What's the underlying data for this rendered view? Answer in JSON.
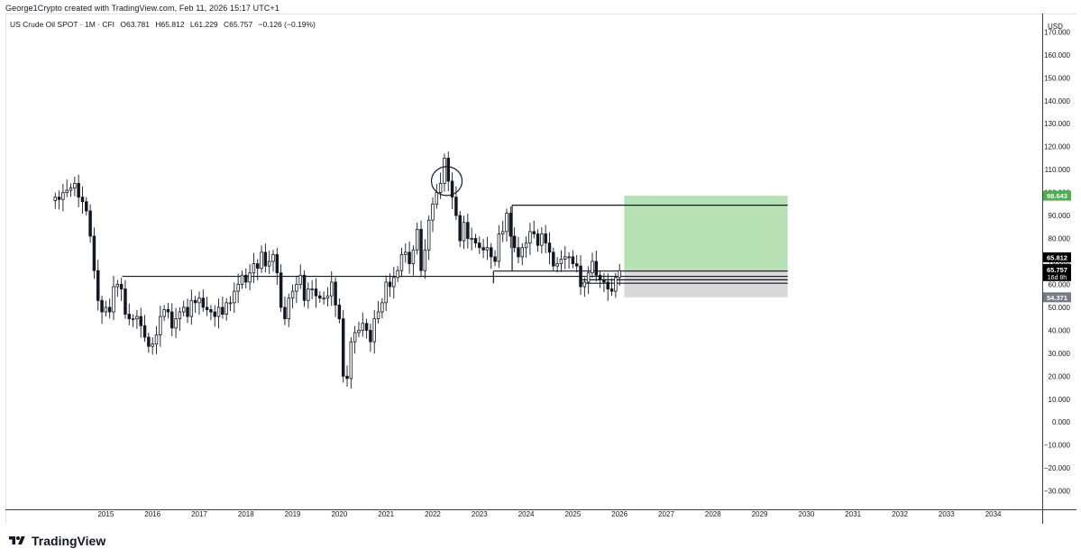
{
  "header": {
    "credit": "George1Crypto created with TradingView.com, Feb 11, 2026 15:17 UTC+1",
    "symbol": "US Crude Oil SPOT · 1M · CFI",
    "open": "O63.781",
    "high": "H65.812",
    "low": "L61.229",
    "close": "C65.757",
    "change": "−0.126 (−0.19%)"
  },
  "axis": {
    "currency": "USD"
  },
  "price_labels": {
    "target": "98.643",
    "high": "65.812",
    "last": "65.757",
    "countdown": "16d 8h",
    "stop": "54.371"
  },
  "branding": {
    "logo_text": "TradingView"
  },
  "colors": {
    "up": "#089981",
    "down": "#131722",
    "target_zone": "#b7e1b5",
    "stop_zone": "#d9d9d9",
    "target_label_bg": "#4caf50",
    "last_label_bg": "#000000",
    "stop_label_bg": "#787b86"
  },
  "chart_data": {
    "type": "candlestick",
    "timeframe": "1M",
    "y_ticks": [
      170,
      160,
      150,
      140,
      130,
      120,
      110,
      100,
      90,
      80,
      70,
      60,
      50,
      40,
      30,
      20,
      10,
      0,
      -10,
      -20,
      -30
    ],
    "y_tick_labels": [
      "170.000",
      "160.000",
      "150.000",
      "140.000",
      "130.000",
      "120.000",
      "110.000",
      "100.000",
      "90.000",
      "80.000",
      "70.000",
      "60.000",
      "50.000",
      "40.000",
      "30.000",
      "20.000",
      "10.000",
      "0.000",
      "−10.000",
      "−20.000",
      "−30.000"
    ],
    "ylim": [
      -38,
      178
    ],
    "x_ticks": [
      "2015",
      "2016",
      "2017",
      "2018",
      "2019",
      "2020",
      "2021",
      "2022",
      "2023",
      "2024",
      "2025",
      "2026",
      "2027",
      "2028",
      "2029",
      "2030",
      "2031",
      "2032",
      "2033",
      "2034"
    ],
    "x_tick_years": [
      2015,
      2016,
      2017,
      2018,
      2019,
      2020,
      2021,
      2022,
      2023,
      2024,
      2025,
      2026,
      2027,
      2028,
      2029,
      2030,
      2031,
      2032,
      2033,
      2034
    ],
    "xlim": [
      2012.85,
      2035.05
    ],
    "candles_start": 2013.9167,
    "closes": [
      98,
      97,
      100,
      101,
      102,
      104,
      98,
      96,
      92,
      81,
      66,
      53,
      48,
      50,
      48,
      59,
      60,
      58,
      47,
      45,
      45,
      46,
      42,
      37,
      33,
      34,
      38,
      46,
      49,
      48,
      41,
      45,
      48,
      50,
      46,
      53,
      52,
      54,
      50,
      49,
      48,
      46,
      50,
      47,
      52,
      52,
      57,
      60,
      64,
      61,
      65,
      69,
      67,
      74,
      68,
      70,
      73,
      65,
      50,
      45,
      54,
      57,
      60,
      64,
      53,
      58,
      58,
      55,
      54,
      54,
      55,
      61,
      51,
      45,
      20,
      19,
      35,
      39,
      40,
      43,
      40,
      35,
      45,
      48,
      52,
      61,
      59,
      63,
      66,
      73,
      74,
      69,
      75,
      84,
      66,
      75,
      88,
      95,
      100,
      104,
      115,
      105,
      98,
      90,
      79,
      87,
      80,
      80,
      78,
      76,
      75,
      76,
      72,
      70,
      82,
      83,
      91,
      81,
      76,
      72,
      76,
      78,
      83,
      82,
      77,
      82,
      78,
      74,
      68,
      69,
      71,
      72,
      72,
      69,
      68,
      59,
      61,
      65,
      70,
      64,
      62,
      61,
      58,
      57,
      63,
      66
    ],
    "horizontal_levels": [
      {
        "value": 63.5,
        "from": 2015.35,
        "to": 2029.6
      },
      {
        "value": 94.5,
        "from": 2023.7,
        "to": 2029.6
      },
      {
        "value": 65.8,
        "from": 2023.3,
        "to": 2029.6
      },
      {
        "value": 62.0,
        "from": 2025.2,
        "to": 2029.6
      },
      {
        "value": 60.5,
        "from": 2025.2,
        "to": 2029.6
      }
    ],
    "highlight_circle": {
      "x": 2022.3,
      "y": 105
    },
    "position": {
      "start": 2026.1,
      "end": 2029.6,
      "target": 98.643,
      "entry": 65.757,
      "stop": 54.371
    }
  }
}
